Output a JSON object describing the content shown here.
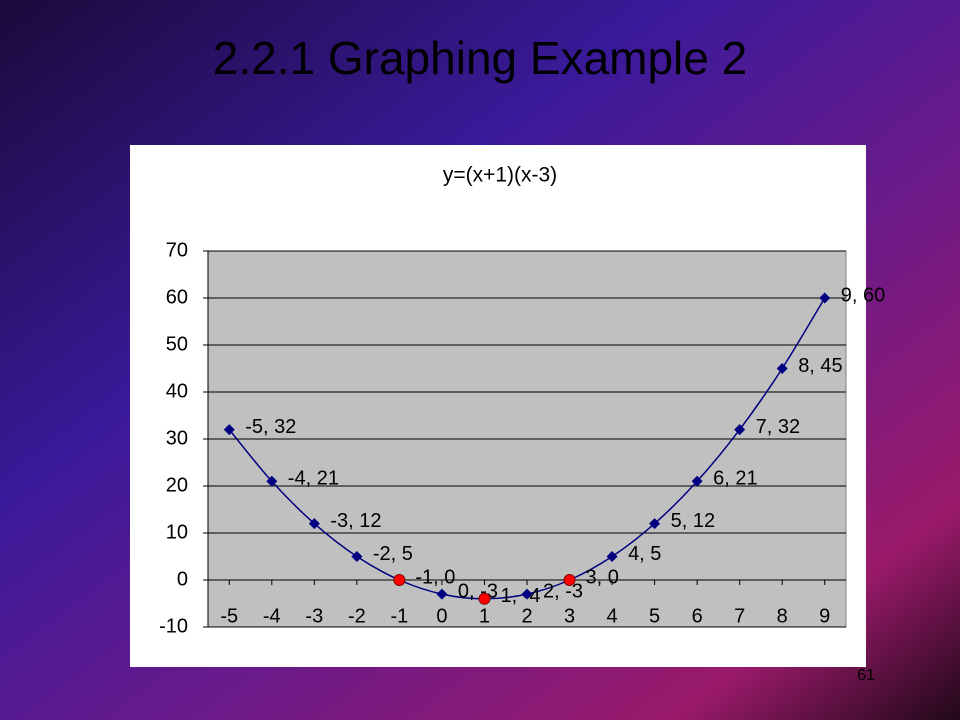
{
  "slide_title": "2.2.1 Graphing Example 2",
  "page_number": "61",
  "chart_data": {
    "type": "line",
    "title": "y=(x+1)(x-3)",
    "x": [
      -5,
      -4,
      -3,
      -2,
      -1,
      0,
      1,
      2,
      3,
      4,
      5,
      6,
      7,
      8,
      9
    ],
    "series": [
      {
        "color": "#000080",
        "values": [
          32,
          21,
          12,
          5,
          0,
          -3,
          -4,
          -3,
          0,
          5,
          12,
          21,
          32,
          45,
          60
        ],
        "value_labels": [
          "-5, 32",
          "-4, 21",
          "-3, 12",
          "-2, 5",
          "-1, 0",
          "0, -3",
          "1, -4",
          "2, -3",
          "3, 0",
          "4, 5",
          "5, 12",
          "6, 21",
          "7, 32",
          "8, 45",
          "9, 60"
        ]
      },
      {
        "color": "#ff0000",
        "x": [
          -1,
          1,
          3
        ],
        "values": [
          0,
          -4,
          0
        ]
      }
    ],
    "xlim": [
      -5.5,
      9.5
    ],
    "xticks": [
      -5,
      -4,
      -3,
      -2,
      -1,
      0,
      1,
      2,
      3,
      4,
      5,
      6,
      7,
      8,
      9
    ],
    "ylim": [
      -10,
      70
    ],
    "yticks": [
      -10,
      0,
      10,
      20,
      30,
      40,
      50,
      60,
      70
    ],
    "grid": true
  }
}
